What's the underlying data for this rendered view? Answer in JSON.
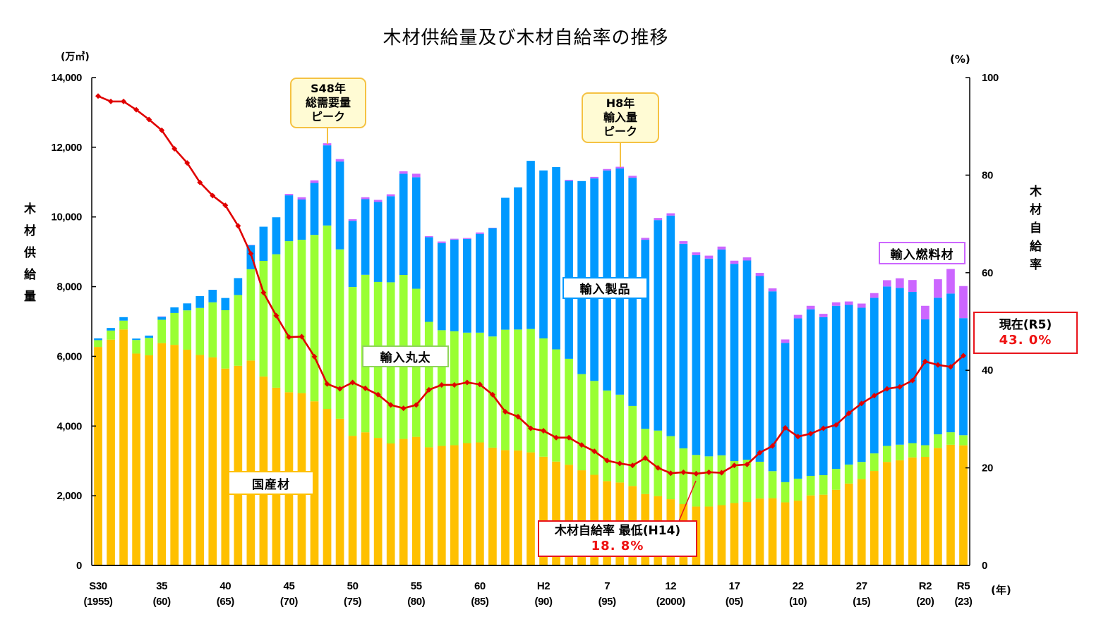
{
  "chart_data": {
    "type": "bar",
    "variant": "stacked bar with line on secondary axis",
    "title": "木材供給量及び木材自給率の推移",
    "years": [
      1955,
      1956,
      1957,
      1958,
      1959,
      1960,
      1961,
      1962,
      1963,
      1964,
      1965,
      1966,
      1967,
      1968,
      1969,
      1970,
      1971,
      1972,
      1973,
      1974,
      1975,
      1976,
      1977,
      1978,
      1979,
      1980,
      1981,
      1982,
      1983,
      1984,
      1985,
      1986,
      1987,
      1988,
      1989,
      1990,
      1991,
      1992,
      1993,
      1994,
      1995,
      1996,
      1997,
      1998,
      1999,
      2000,
      2001,
      2002,
      2003,
      2004,
      2005,
      2006,
      2007,
      2008,
      2009,
      2010,
      2011,
      2012,
      2013,
      2014,
      2015,
      2016,
      2017,
      2018,
      2019,
      2020,
      2021,
      2022,
      2023
    ],
    "x_ticks": [
      {
        "index": 0,
        "era": "S30",
        "year": "(1955)"
      },
      {
        "index": 5,
        "era": "35",
        "year": "(60)"
      },
      {
        "index": 10,
        "era": "40",
        "year": "(65)"
      },
      {
        "index": 15,
        "era": "45",
        "year": "(70)"
      },
      {
        "index": 20,
        "era": "50",
        "year": "(75)"
      },
      {
        "index": 25,
        "era": "55",
        "year": "(80)"
      },
      {
        "index": 30,
        "era": "60",
        "year": "(85)"
      },
      {
        "index": 35,
        "era": "H2",
        "year": "(90)"
      },
      {
        "index": 40,
        "era": "7",
        "year": "(95)"
      },
      {
        "index": 45,
        "era": "12",
        "year": "(2000)"
      },
      {
        "index": 50,
        "era": "17",
        "year": "(05)"
      },
      {
        "index": 55,
        "era": "22",
        "year": "(10)"
      },
      {
        "index": 60,
        "era": "27",
        "year": "(15)"
      },
      {
        "index": 65,
        "era": "R2",
        "year": "(20)"
      },
      {
        "index": 68,
        "era": "R5",
        "year": "(23)"
      }
    ],
    "x_unit": "(年)",
    "y_left": {
      "label": "木材供給量",
      "unit": "(万㎥)",
      "range": [
        0,
        14000
      ],
      "ticks": [
        0,
        2000,
        4000,
        6000,
        8000,
        10000,
        12000,
        14000
      ],
      "tick_labels": [
        "0",
        "2,000",
        "4,000",
        "6,000",
        "8,000",
        "10,000",
        "12,000",
        "14,000"
      ]
    },
    "y_right": {
      "label": "木材自給率",
      "unit": "(%)",
      "range": [
        0,
        100
      ],
      "ticks": [
        0,
        20,
        40,
        60,
        80,
        100
      ],
      "tick_labels": [
        "0",
        "20",
        "40",
        "60",
        "80",
        "100"
      ]
    },
    "grid": false,
    "series": [
      {
        "key": "domestic",
        "name": "国産材",
        "type": "bar",
        "axis": "left",
        "color": "#FFC000",
        "values": [
          6270,
          6480,
          6770,
          6080,
          6030,
          6380,
          6330,
          6190,
          6040,
          5970,
          5650,
          5730,
          5880,
          5420,
          5100,
          4970,
          4945,
          4710,
          4490,
          4210,
          3720,
          3820,
          3660,
          3500,
          3630,
          3690,
          3390,
          3430,
          3450,
          3510,
          3530,
          3380,
          3310,
          3300,
          3245,
          3120,
          2980,
          2890,
          2730,
          2600,
          2420,
          2380,
          2280,
          2050,
          1990,
          1900,
          1760,
          1690,
          1690,
          1730,
          1790,
          1820,
          1920,
          1930,
          1810,
          1860,
          2010,
          2030,
          2170,
          2350,
          2480,
          2710,
          2970,
          3020,
          3100,
          3115,
          3372,
          3462,
          3447
        ]
      },
      {
        "key": "import-logs",
        "name": "輸入丸太",
        "type": "bar",
        "axis": "left",
        "color": "#99FF33",
        "values": [
          195,
          260,
          255,
          390,
          500,
          670,
          915,
          1130,
          1350,
          1580,
          1675,
          2030,
          2620,
          3320,
          3830,
          4335,
          4400,
          4775,
          5265,
          4860,
          4270,
          4520,
          4475,
          4625,
          4705,
          4250,
          3600,
          3320,
          3270,
          3170,
          3150,
          3190,
          3455,
          3470,
          3540,
          3395,
          3220,
          3040,
          2760,
          2695,
          2600,
          2520,
          2295,
          1870,
          1880,
          1810,
          1600,
          1480,
          1440,
          1430,
          1205,
          1215,
          1055,
          775,
          580,
          630,
          560,
          560,
          600,
          545,
          490,
          505,
          460,
          445,
          410,
          335,
          390,
          360,
          290
        ]
      },
      {
        "key": "import-products",
        "name": "輸入製品",
        "type": "bar",
        "axis": "left",
        "color": "#0099FF",
        "values": [
          50,
          75,
          100,
          40,
          65,
          85,
          160,
          200,
          340,
          360,
          350,
          485,
          690,
          980,
          1060,
          1315,
          1155,
          1490,
          2300,
          2520,
          1900,
          2170,
          2295,
          2470,
          2905,
          3200,
          2430,
          2500,
          2630,
          2690,
          2835,
          3110,
          3785,
          4080,
          4825,
          4820,
          5230,
          5105,
          5540,
          5810,
          6315,
          6490,
          6550,
          5425,
          6040,
          6330,
          5870,
          5735,
          5675,
          5905,
          5660,
          5715,
          5330,
          5160,
          3995,
          4600,
          4780,
          4535,
          4680,
          4580,
          4425,
          4465,
          4575,
          4500,
          4340,
          3610,
          3920,
          3980,
          3360
        ]
      },
      {
        "key": "import-fuel",
        "name": "輸入燃料材",
        "type": "bar",
        "axis": "left",
        "color": "#CC66FF",
        "values": [
          0,
          0,
          0,
          0,
          0,
          10,
          0,
          0,
          0,
          0,
          0,
          0,
          10,
          0,
          0,
          40,
          65,
          75,
          60,
          70,
          45,
          55,
          60,
          55,
          70,
          100,
          30,
          45,
          25,
          25,
          40,
          10,
          0,
          0,
          0,
          0,
          0,
          30,
          0,
          45,
          40,
          50,
          55,
          55,
          60,
          65,
          75,
          80,
          85,
          85,
          90,
          90,
          90,
          85,
          100,
          100,
          100,
          95,
          100,
          100,
          120,
          135,
          180,
          275,
          340,
          390,
          530,
          705,
          920
        ]
      },
      {
        "key": "self-sufficiency",
        "name": "木材自給率",
        "type": "line",
        "axis": "right",
        "color": "#E00000",
        "values": [
          96.2,
          95.1,
          95.1,
          93.4,
          91.4,
          89.2,
          85.4,
          82.5,
          78.5,
          75.8,
          73.8,
          69.6,
          63.9,
          55.9,
          51.2,
          46.8,
          46.9,
          42.8,
          37.2,
          36.2,
          37.5,
          36.3,
          35.0,
          32.9,
          32.2,
          32.9,
          36.0,
          37.0,
          37.0,
          37.5,
          37.1,
          35.0,
          31.5,
          30.5,
          28.1,
          27.6,
          26.2,
          26.2,
          24.7,
          23.4,
          21.5,
          20.9,
          20.5,
          22.0,
          20.0,
          18.9,
          19.1,
          18.8,
          19.1,
          19.0,
          20.5,
          20.7,
          23.1,
          24.5,
          28.2,
          26.4,
          27.0,
          28.1,
          28.8,
          31.2,
          33.2,
          34.8,
          36.2,
          36.6,
          37.9,
          41.8,
          41.1,
          40.7,
          43.0
        ]
      }
    ],
    "annotations": {
      "peak_demand": {
        "year": 1973,
        "lines": [
          "S48年",
          "総需要量",
          "ピーク"
        ]
      },
      "peak_import": {
        "year": 1996,
        "lines": [
          "H8年",
          "輸入量",
          "ピーク"
        ]
      },
      "series_labels": {
        "domestic": "国産材",
        "import_logs": "輸入丸太",
        "import_products": "輸入製品",
        "import_fuel": "輸入燃料材"
      },
      "current": {
        "year": 2023,
        "label": "現在(R5)",
        "value": "43. 0%"
      },
      "lowest": {
        "year": 2002,
        "label": "木材自給率 最低(H14)",
        "value": "18. 8%"
      }
    }
  }
}
